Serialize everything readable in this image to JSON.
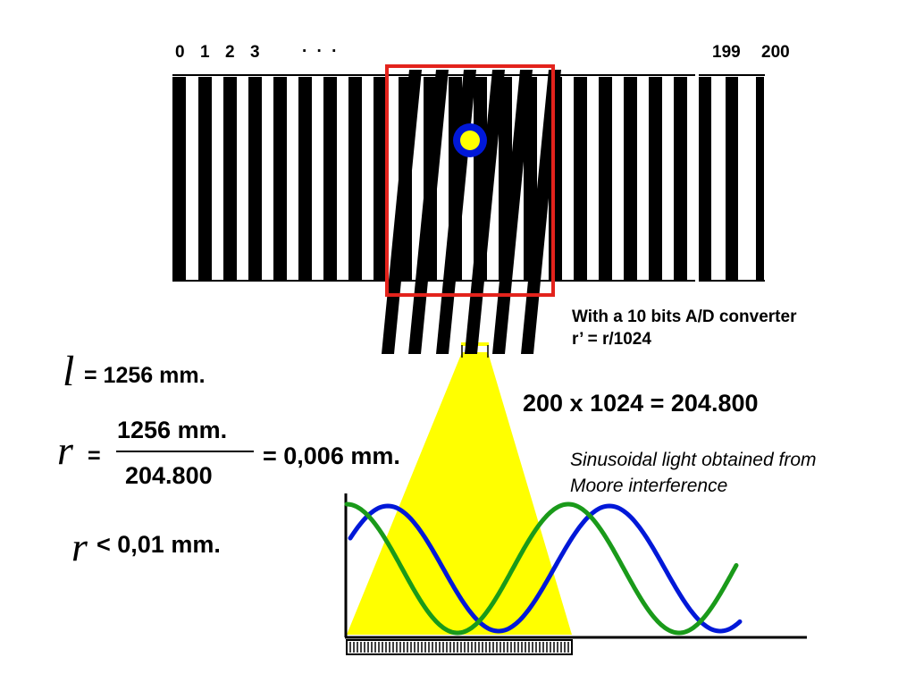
{
  "scale_labels": {
    "n0": "0",
    "n1": "1",
    "n2": "2",
    "n3": "3",
    "ellipsis": ". . .",
    "n199": "199",
    "n200": "200"
  },
  "notes": {
    "converter_line1": "With a 10 bits A/D converter",
    "converter_line2": "r’ = r/1024",
    "product": "200 x 1024 = 204.800",
    "sinusoid_line1": "Sinusoidal light obtained from",
    "sinusoid_line2": "Moore interference"
  },
  "formulas": {
    "l_symbol": "l",
    "l_rest": "= 1256 mm.",
    "r_symbol": "r",
    "r_equals": "=",
    "r_numerator": "1256 mm.",
    "r_denominator": "204.800",
    "r_result": "= 0,006 mm.",
    "r2_symbol": "r",
    "r2_rest": "< 0,01 mm."
  },
  "colors": {
    "grating": "#000000",
    "frame": "#e3231c",
    "light_cone": "#ffff00",
    "sensor_ring": "#0018d8",
    "sensor_core": "#ffff00",
    "wave_blue": "#0018d8",
    "wave_green": "#1a9a1a"
  }
}
